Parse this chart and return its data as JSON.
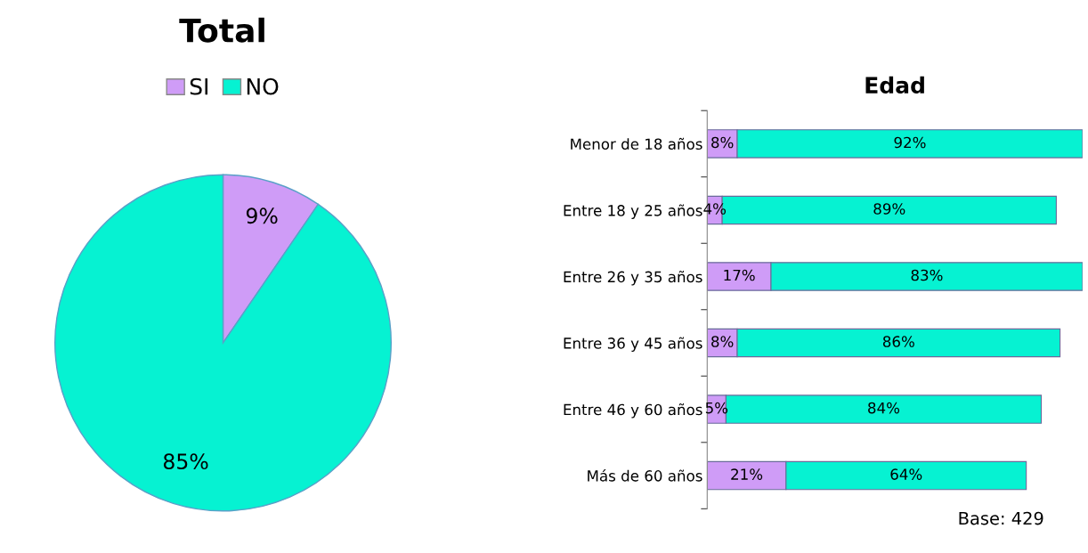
{
  "chart_data": [
    {
      "type": "pie",
      "title": "Total",
      "categories": [
        "SI",
        "NO"
      ],
      "values": [
        9,
        85
      ],
      "colors": [
        "#cf9cf7",
        "#06f2d2"
      ],
      "value_labels": [
        "9%",
        "85%"
      ],
      "legend": "top"
    },
    {
      "type": "bar",
      "title": "Edad",
      "orientation": "horizontal",
      "stacked": true,
      "categories": [
        "Menor de 18 años",
        "Entre 18 y 25 años",
        "Entre 26 y 35 años",
        "Entre 36 y 45 años",
        "Entre 46 y 60 años",
        "Más de 60 años"
      ],
      "series": [
        {
          "color": "#cf9cf7",
          "values": [
            8,
            4,
            17,
            8,
            5,
            21
          ],
          "value_labels": [
            "8%",
            "4%",
            "17%",
            "8%",
            "5%",
            "21%"
          ]
        },
        {
          "color": "#06f2d2",
          "values": [
            92,
            89,
            83,
            86,
            84,
            64
          ],
          "value_labels": [
            "92%",
            "89%",
            "83%",
            "86%",
            "84%",
            "64%"
          ]
        }
      ],
      "annotations": [
        "Base: 429"
      ]
    }
  ]
}
